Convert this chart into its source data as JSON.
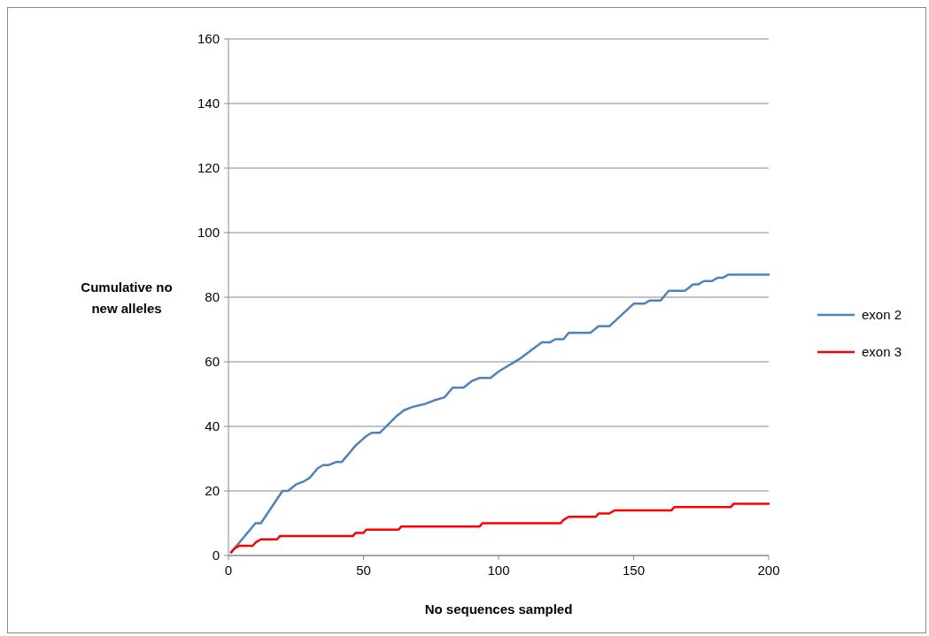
{
  "chart_data": {
    "type": "line",
    "xlabel": "No sequences sampled",
    "ylabel": "Cumulative no new alleles",
    "xlim": [
      0,
      200
    ],
    "xticks": [
      0,
      50,
      100,
      150,
      200
    ],
    "ylim": [
      0,
      160
    ],
    "yticks": [
      0,
      20,
      40,
      60,
      80,
      100,
      120,
      140,
      160
    ],
    "grid": "y",
    "legend": "right",
    "marker": "none",
    "line_style": "solid",
    "series": [
      {
        "name": "exon 2",
        "color": "#4f81bd",
        "x": [
          1,
          10,
          12,
          20,
          22,
          25,
          28,
          30,
          33,
          35,
          37,
          40,
          42,
          47,
          51,
          53,
          56,
          62,
          65,
          68,
          73,
          76,
          80,
          83,
          87,
          90,
          93,
          97,
          100,
          108,
          116,
          119,
          121,
          124,
          126,
          134,
          137,
          141,
          150,
          154,
          156,
          160,
          163,
          169,
          172,
          174,
          176,
          179,
          181,
          183,
          185,
          200
        ],
        "values": [
          1,
          10,
          10,
          20,
          20,
          22,
          23,
          24,
          27,
          28,
          28,
          29,
          29,
          34,
          37,
          38,
          38,
          43,
          45,
          46,
          47,
          48,
          49,
          52,
          52,
          54,
          55,
          55,
          57,
          61,
          66,
          66,
          67,
          67,
          69,
          69,
          71,
          71,
          78,
          78,
          79,
          79,
          82,
          82,
          84,
          84,
          85,
          85,
          86,
          86,
          87,
          87
        ]
      },
      {
        "name": "exon 3",
        "color": "#ff0000",
        "x": [
          1,
          2,
          4,
          9,
          10,
          12,
          18,
          19,
          46,
          47,
          50,
          51,
          63,
          64,
          93,
          94,
          123,
          124,
          126,
          136,
          137,
          141,
          143,
          164,
          165,
          186,
          187,
          200
        ],
        "values": [
          1,
          2,
          3,
          3,
          4,
          5,
          5,
          6,
          6,
          7,
          7,
          8,
          8,
          9,
          9,
          10,
          10,
          11,
          12,
          12,
          13,
          13,
          14,
          14,
          15,
          15,
          16,
          16
        ]
      }
    ]
  }
}
